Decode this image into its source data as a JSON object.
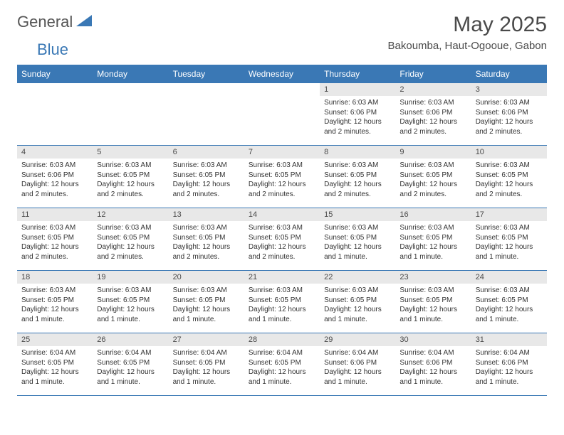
{
  "logo": {
    "text1": "General",
    "text2": "Blue",
    "text1_color": "#555555",
    "text2_color": "#3a78b5"
  },
  "title": "May 2025",
  "location": "Bakoumba, Haut-Ogooue, Gabon",
  "accent_color": "#3a78b5",
  "daynum_bg": "#e8e8e8",
  "day_headers": [
    "Sunday",
    "Monday",
    "Tuesday",
    "Wednesday",
    "Thursday",
    "Friday",
    "Saturday"
  ],
  "weeks": [
    [
      {
        "n": "",
        "sr": "",
        "ss": "",
        "dl": ""
      },
      {
        "n": "",
        "sr": "",
        "ss": "",
        "dl": ""
      },
      {
        "n": "",
        "sr": "",
        "ss": "",
        "dl": ""
      },
      {
        "n": "",
        "sr": "",
        "ss": "",
        "dl": ""
      },
      {
        "n": "1",
        "sr": "Sunrise: 6:03 AM",
        "ss": "Sunset: 6:06 PM",
        "dl": "Daylight: 12 hours and 2 minutes."
      },
      {
        "n": "2",
        "sr": "Sunrise: 6:03 AM",
        "ss": "Sunset: 6:06 PM",
        "dl": "Daylight: 12 hours and 2 minutes."
      },
      {
        "n": "3",
        "sr": "Sunrise: 6:03 AM",
        "ss": "Sunset: 6:06 PM",
        "dl": "Daylight: 12 hours and 2 minutes."
      }
    ],
    [
      {
        "n": "4",
        "sr": "Sunrise: 6:03 AM",
        "ss": "Sunset: 6:06 PM",
        "dl": "Daylight: 12 hours and 2 minutes."
      },
      {
        "n": "5",
        "sr": "Sunrise: 6:03 AM",
        "ss": "Sunset: 6:05 PM",
        "dl": "Daylight: 12 hours and 2 minutes."
      },
      {
        "n": "6",
        "sr": "Sunrise: 6:03 AM",
        "ss": "Sunset: 6:05 PM",
        "dl": "Daylight: 12 hours and 2 minutes."
      },
      {
        "n": "7",
        "sr": "Sunrise: 6:03 AM",
        "ss": "Sunset: 6:05 PM",
        "dl": "Daylight: 12 hours and 2 minutes."
      },
      {
        "n": "8",
        "sr": "Sunrise: 6:03 AM",
        "ss": "Sunset: 6:05 PM",
        "dl": "Daylight: 12 hours and 2 minutes."
      },
      {
        "n": "9",
        "sr": "Sunrise: 6:03 AM",
        "ss": "Sunset: 6:05 PM",
        "dl": "Daylight: 12 hours and 2 minutes."
      },
      {
        "n": "10",
        "sr": "Sunrise: 6:03 AM",
        "ss": "Sunset: 6:05 PM",
        "dl": "Daylight: 12 hours and 2 minutes."
      }
    ],
    [
      {
        "n": "11",
        "sr": "Sunrise: 6:03 AM",
        "ss": "Sunset: 6:05 PM",
        "dl": "Daylight: 12 hours and 2 minutes."
      },
      {
        "n": "12",
        "sr": "Sunrise: 6:03 AM",
        "ss": "Sunset: 6:05 PM",
        "dl": "Daylight: 12 hours and 2 minutes."
      },
      {
        "n": "13",
        "sr": "Sunrise: 6:03 AM",
        "ss": "Sunset: 6:05 PM",
        "dl": "Daylight: 12 hours and 2 minutes."
      },
      {
        "n": "14",
        "sr": "Sunrise: 6:03 AM",
        "ss": "Sunset: 6:05 PM",
        "dl": "Daylight: 12 hours and 2 minutes."
      },
      {
        "n": "15",
        "sr": "Sunrise: 6:03 AM",
        "ss": "Sunset: 6:05 PM",
        "dl": "Daylight: 12 hours and 1 minute."
      },
      {
        "n": "16",
        "sr": "Sunrise: 6:03 AM",
        "ss": "Sunset: 6:05 PM",
        "dl": "Daylight: 12 hours and 1 minute."
      },
      {
        "n": "17",
        "sr": "Sunrise: 6:03 AM",
        "ss": "Sunset: 6:05 PM",
        "dl": "Daylight: 12 hours and 1 minute."
      }
    ],
    [
      {
        "n": "18",
        "sr": "Sunrise: 6:03 AM",
        "ss": "Sunset: 6:05 PM",
        "dl": "Daylight: 12 hours and 1 minute."
      },
      {
        "n": "19",
        "sr": "Sunrise: 6:03 AM",
        "ss": "Sunset: 6:05 PM",
        "dl": "Daylight: 12 hours and 1 minute."
      },
      {
        "n": "20",
        "sr": "Sunrise: 6:03 AM",
        "ss": "Sunset: 6:05 PM",
        "dl": "Daylight: 12 hours and 1 minute."
      },
      {
        "n": "21",
        "sr": "Sunrise: 6:03 AM",
        "ss": "Sunset: 6:05 PM",
        "dl": "Daylight: 12 hours and 1 minute."
      },
      {
        "n": "22",
        "sr": "Sunrise: 6:03 AM",
        "ss": "Sunset: 6:05 PM",
        "dl": "Daylight: 12 hours and 1 minute."
      },
      {
        "n": "23",
        "sr": "Sunrise: 6:03 AM",
        "ss": "Sunset: 6:05 PM",
        "dl": "Daylight: 12 hours and 1 minute."
      },
      {
        "n": "24",
        "sr": "Sunrise: 6:03 AM",
        "ss": "Sunset: 6:05 PM",
        "dl": "Daylight: 12 hours and 1 minute."
      }
    ],
    [
      {
        "n": "25",
        "sr": "Sunrise: 6:04 AM",
        "ss": "Sunset: 6:05 PM",
        "dl": "Daylight: 12 hours and 1 minute."
      },
      {
        "n": "26",
        "sr": "Sunrise: 6:04 AM",
        "ss": "Sunset: 6:05 PM",
        "dl": "Daylight: 12 hours and 1 minute."
      },
      {
        "n": "27",
        "sr": "Sunrise: 6:04 AM",
        "ss": "Sunset: 6:05 PM",
        "dl": "Daylight: 12 hours and 1 minute."
      },
      {
        "n": "28",
        "sr": "Sunrise: 6:04 AM",
        "ss": "Sunset: 6:05 PM",
        "dl": "Daylight: 12 hours and 1 minute."
      },
      {
        "n": "29",
        "sr": "Sunrise: 6:04 AM",
        "ss": "Sunset: 6:06 PM",
        "dl": "Daylight: 12 hours and 1 minute."
      },
      {
        "n": "30",
        "sr": "Sunrise: 6:04 AM",
        "ss": "Sunset: 6:06 PM",
        "dl": "Daylight: 12 hours and 1 minute."
      },
      {
        "n": "31",
        "sr": "Sunrise: 6:04 AM",
        "ss": "Sunset: 6:06 PM",
        "dl": "Daylight: 12 hours and 1 minute."
      }
    ]
  ]
}
